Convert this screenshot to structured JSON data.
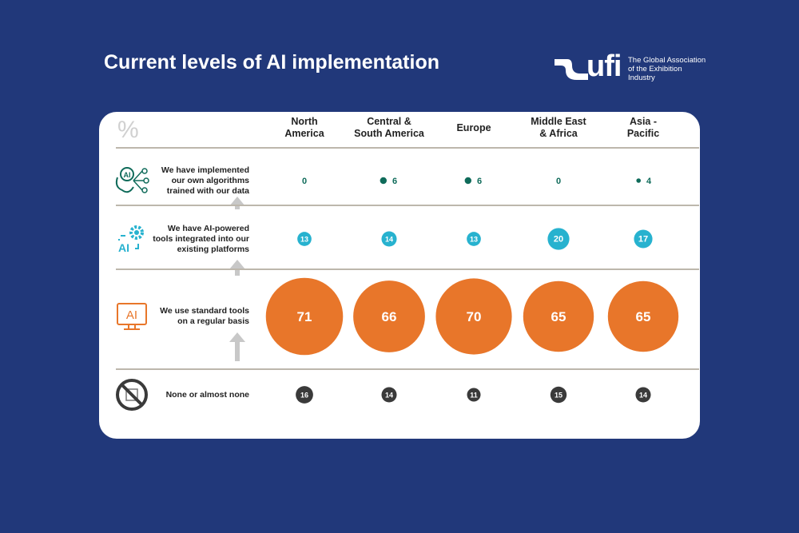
{
  "header": {
    "title": "Current levels of AI implementation"
  },
  "logo": {
    "word": "ufi",
    "tagline": "The Global Association of the Exhibition Industry"
  },
  "chart_data": {
    "type": "bubble-table",
    "unit_label": "%",
    "categories": [
      "North America",
      "Central & South America",
      "Europe",
      "Middle East & Africa",
      "Asia - Pacific"
    ],
    "category_lines": [
      [
        "North",
        "America"
      ],
      [
        "Central &",
        "South America"
      ],
      [
        "Europe"
      ],
      [
        "Middle East",
        "& Africa"
      ],
      [
        "Asia -",
        "Pacific"
      ]
    ],
    "series": [
      {
        "name": "We have implemented our own algorithms trained with our data",
        "label_lines": [
          "We have implemented",
          "our own algorithms",
          "trained with our data"
        ],
        "icon": "brain-network-icon",
        "color": "#0f6b5a",
        "values": [
          0,
          6,
          6,
          0,
          4
        ]
      },
      {
        "name": "We have AI-powered tools integrated into our existing platforms",
        "label_lines": [
          "We have AI-powered",
          "tools integrated into our",
          "existing platforms"
        ],
        "icon": "ai-gear-icon",
        "color": "#27b2cf",
        "values": [
          13,
          14,
          13,
          20,
          17
        ]
      },
      {
        "name": "We use standard tools on a regular basis",
        "label_lines": [
          "We use standard tools",
          "on a regular basis"
        ],
        "icon": "ai-monitor-icon",
        "color": "#e8762a",
        "values": [
          71,
          66,
          70,
          65,
          65
        ]
      },
      {
        "name": "None or almost none",
        "label_lines": [
          "None or almost none"
        ],
        "icon": "no-chip-icon",
        "color": "#3a3a3a",
        "values": [
          16,
          14,
          11,
          15,
          14
        ]
      }
    ]
  }
}
